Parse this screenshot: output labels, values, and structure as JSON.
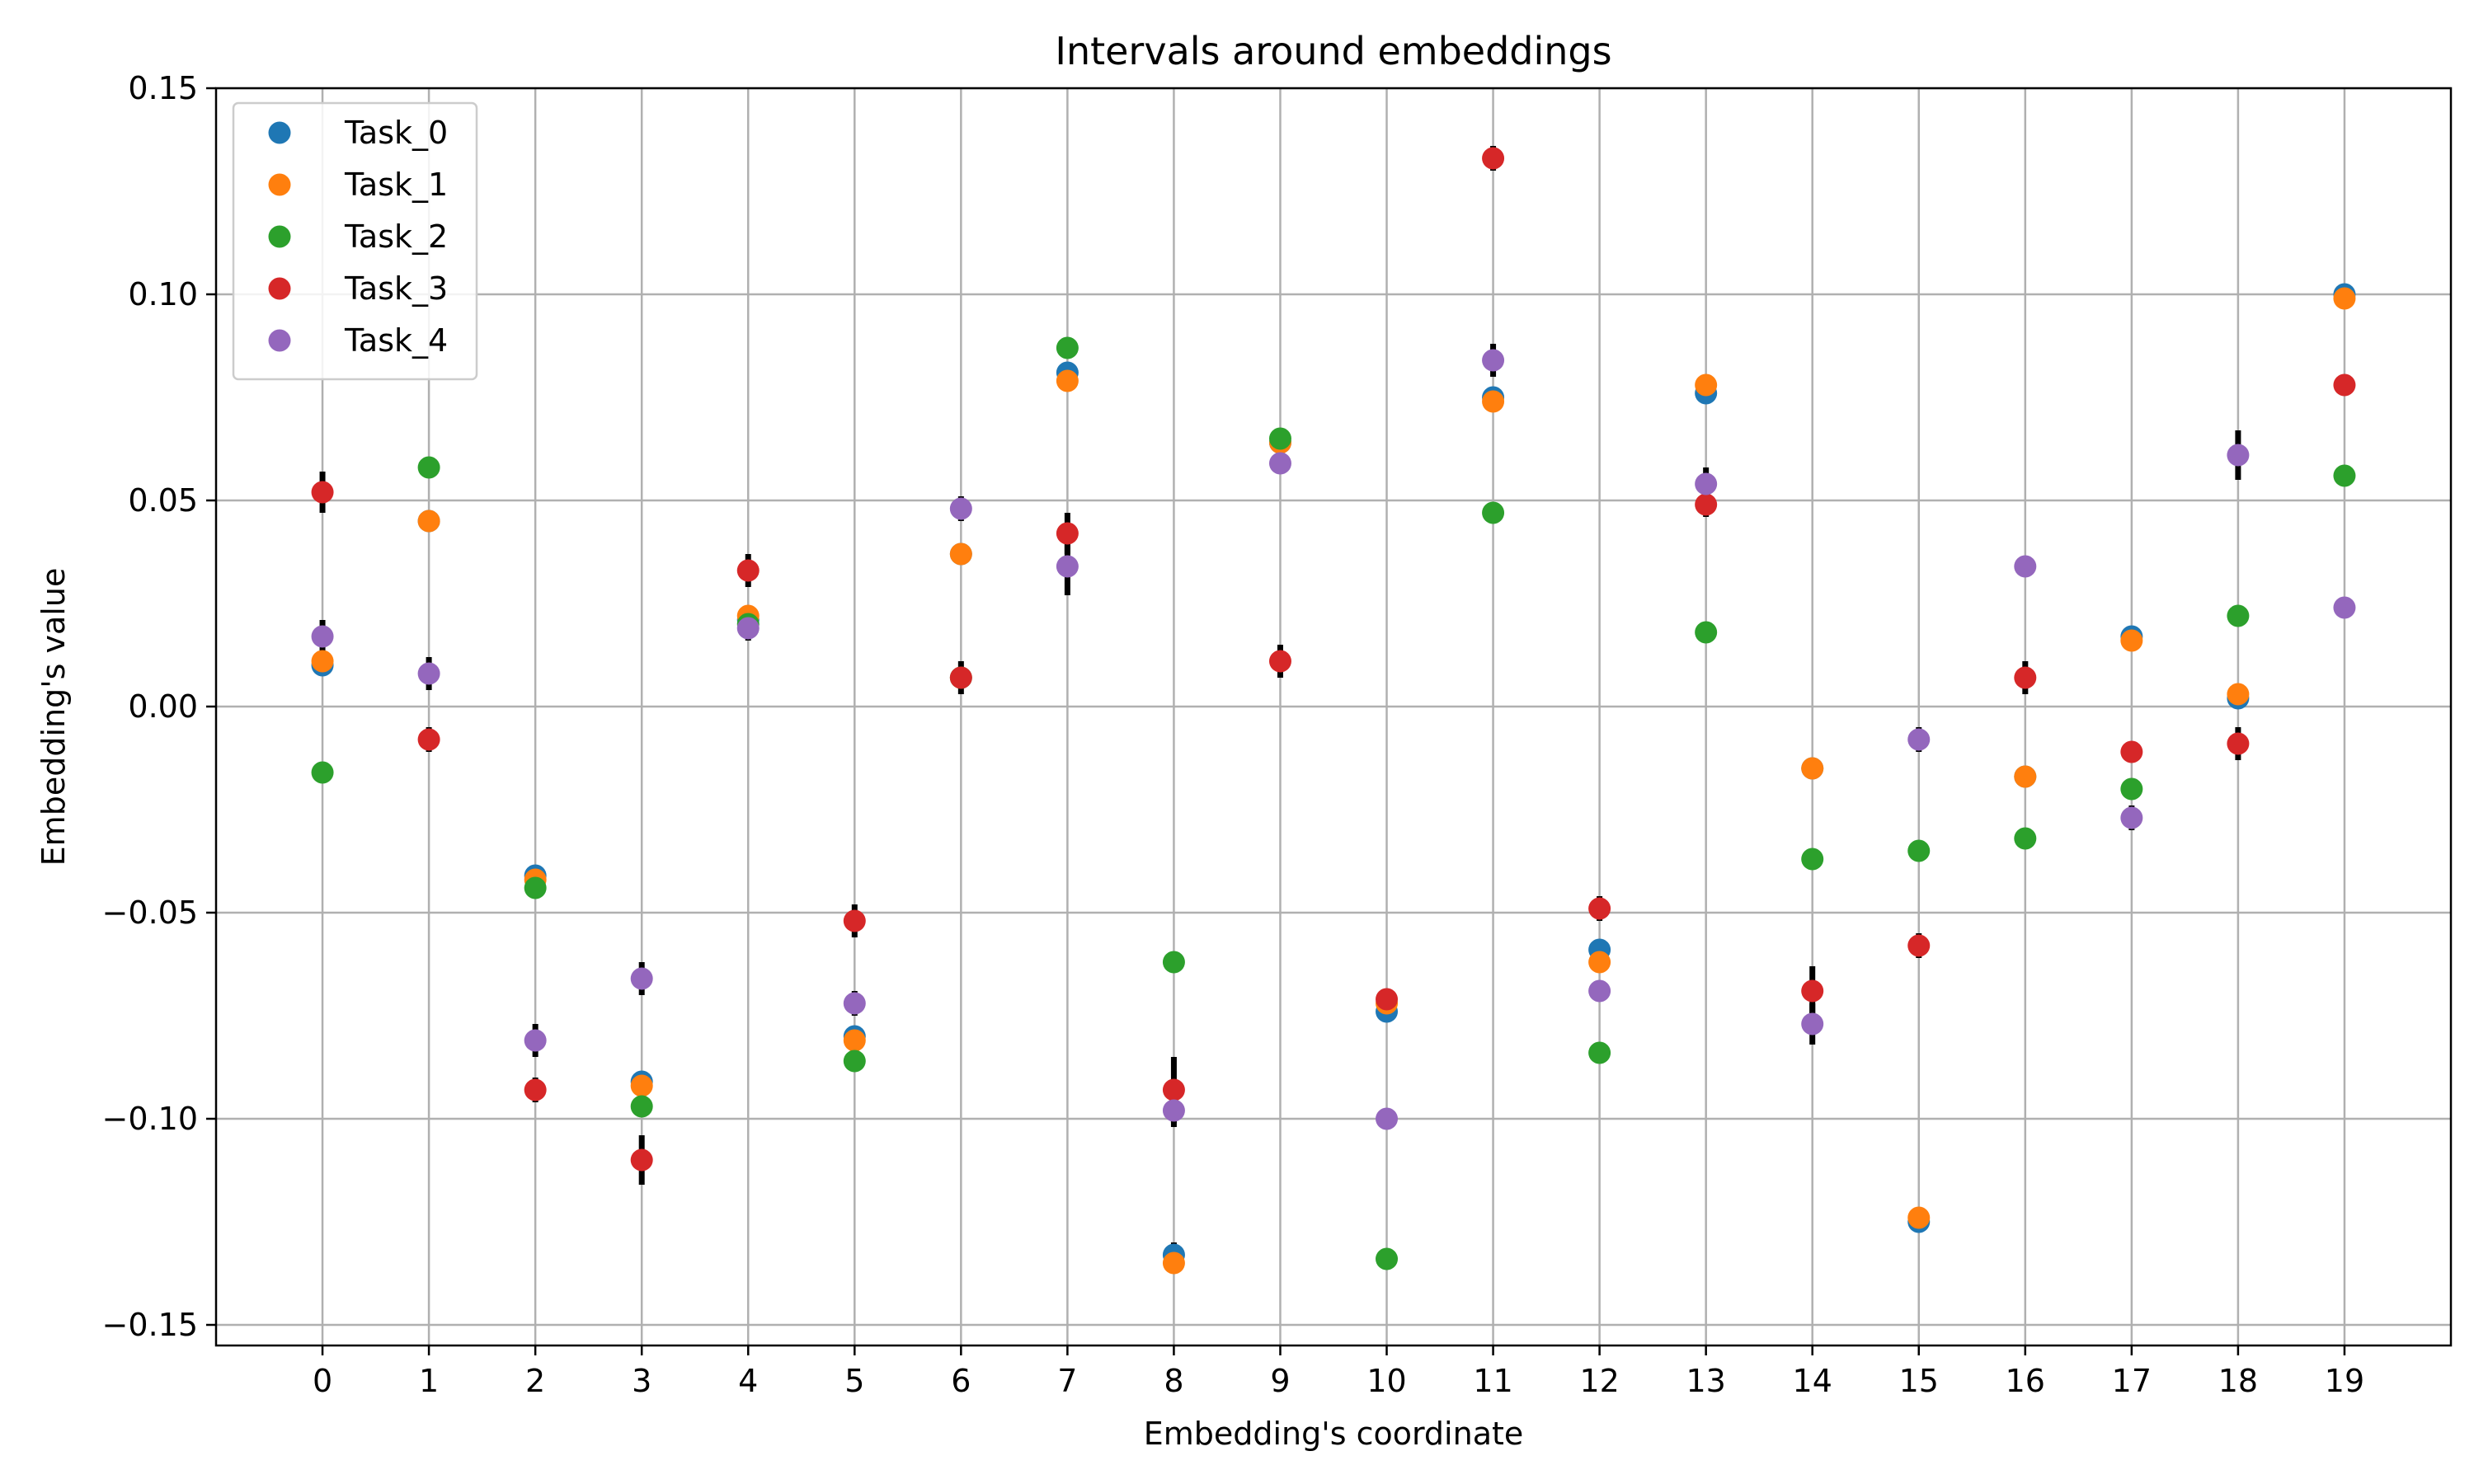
{
  "chart_data": {
    "type": "scatter",
    "title": "Intervals around embeddings",
    "xlabel": "Embedding's coordinate",
    "ylabel": "Embedding's value",
    "xlim": [
      -1,
      20
    ],
    "ylim": [
      -0.155,
      0.15
    ],
    "x_ticks": [
      0,
      1,
      2,
      3,
      4,
      5,
      6,
      7,
      8,
      9,
      10,
      11,
      12,
      13,
      14,
      15,
      16,
      17,
      18,
      19
    ],
    "x_tick_labels": [
      "0",
      "1",
      "2",
      "3",
      "4",
      "5",
      "6",
      "7",
      "8",
      "9",
      "10",
      "11",
      "12",
      "13",
      "14",
      "15",
      "16",
      "17",
      "18",
      "19"
    ],
    "y_ticks": [
      -0.15,
      -0.1,
      -0.05,
      0.0,
      0.05,
      0.1,
      0.15
    ],
    "y_tick_labels": [
      "−0.15",
      "−0.10",
      "−0.05",
      "0.00",
      "0.05",
      "0.10",
      "0.15"
    ],
    "grid": true,
    "legend_position": "top-left",
    "x": [
      0,
      1,
      2,
      3,
      4,
      5,
      6,
      7,
      8,
      9,
      10,
      11,
      12,
      13,
      14,
      15,
      16,
      17,
      18,
      19
    ],
    "series": [
      {
        "name": "Task_0",
        "color": "#1f77b4",
        "values": [
          0.01,
          0.045,
          -0.041,
          -0.091,
          0.021,
          -0.08,
          0.037,
          0.081,
          -0.133,
          0.064,
          -0.074,
          0.075,
          -0.059,
          0.076,
          -0.015,
          -0.125,
          -0.017,
          0.017,
          0.002,
          0.1
        ],
        "errors": [
          0.002,
          0.002,
          0.002,
          0.002,
          0.002,
          0.002,
          0.002,
          0.002,
          0.003,
          0.002,
          0.002,
          0.002,
          0.002,
          0.002,
          0.002,
          0.002,
          0.002,
          0.002,
          0.002,
          0.002
        ]
      },
      {
        "name": "Task_1",
        "color": "#ff7f0e",
        "values": [
          0.011,
          0.045,
          -0.042,
          -0.092,
          0.022,
          -0.081,
          0.037,
          0.079,
          -0.135,
          0.064,
          -0.072,
          0.074,
          -0.062,
          0.078,
          -0.015,
          -0.124,
          -0.017,
          0.016,
          0.003,
          0.099
        ],
        "errors": [
          0.002,
          0.002,
          0.002,
          0.002,
          0.002,
          0.002,
          0.002,
          0.002,
          0.002,
          0.002,
          0.002,
          0.002,
          0.002,
          0.002,
          0.002,
          0.002,
          0.002,
          0.002,
          0.002,
          0.002
        ]
      },
      {
        "name": "Task_2",
        "color": "#2ca02c",
        "values": [
          -0.016,
          0.058,
          -0.044,
          -0.097,
          0.02,
          -0.086,
          0.007,
          0.087,
          -0.062,
          0.065,
          -0.134,
          0.047,
          -0.084,
          0.018,
          -0.037,
          -0.035,
          -0.032,
          -0.02,
          0.022,
          0.056
        ],
        "errors": [
          0.001,
          0.002,
          0.002,
          0.002,
          0.002,
          0.002,
          0.001,
          0.002,
          0.002,
          0.002,
          0.002,
          0.002,
          0.002,
          0.002,
          0.002,
          0.002,
          0.002,
          0.002,
          0.002,
          0.002
        ]
      },
      {
        "name": "Task_3",
        "color": "#d62728",
        "values": [
          0.052,
          -0.008,
          -0.093,
          -0.11,
          0.033,
          -0.052,
          0.007,
          0.042,
          -0.093,
          0.011,
          -0.071,
          0.133,
          -0.049,
          0.049,
          -0.069,
          -0.058,
          0.007,
          -0.011,
          -0.009,
          0.078
        ],
        "errors": [
          0.005,
          0.003,
          0.003,
          0.006,
          0.004,
          0.004,
          0.004,
          0.005,
          0.008,
          0.004,
          0.002,
          0.003,
          0.003,
          0.003,
          0.006,
          0.003,
          0.004,
          0.002,
          0.004,
          0.002
        ]
      },
      {
        "name": "Task_4",
        "color": "#9467bd",
        "values": [
          0.017,
          0.008,
          -0.081,
          -0.066,
          0.019,
          -0.072,
          0.048,
          0.034,
          -0.098,
          0.059,
          -0.1,
          0.084,
          -0.069,
          0.054,
          -0.077,
          -0.008,
          0.034,
          -0.027,
          0.061,
          0.024
        ],
        "errors": [
          0.004,
          0.004,
          0.004,
          0.004,
          0.003,
          0.003,
          0.003,
          0.007,
          0.004,
          0.002,
          0.002,
          0.004,
          0.002,
          0.004,
          0.005,
          0.003,
          0.002,
          0.003,
          0.006,
          0.002
        ]
      }
    ]
  }
}
